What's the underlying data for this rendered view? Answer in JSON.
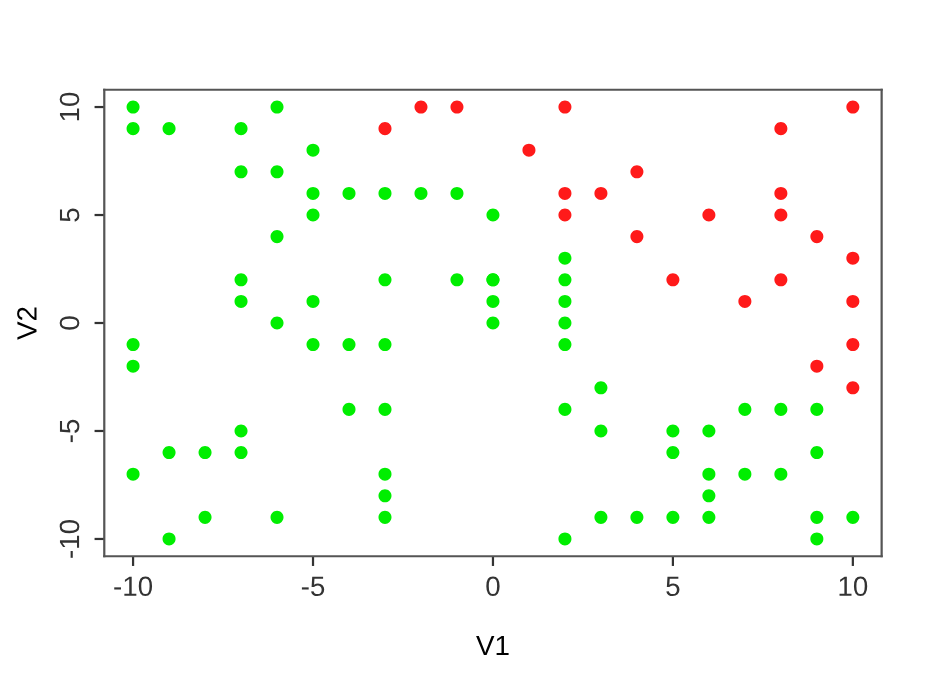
{
  "chart_data": {
    "type": "scatter",
    "xlabel": "V1",
    "ylabel": "V2",
    "xlim": [
      -10.8,
      10.8
    ],
    "ylim": [
      -10.8,
      10.8
    ],
    "xticks": [
      -10,
      -5,
      0,
      5,
      10
    ],
    "yticks": [
      -10,
      -5,
      0,
      5,
      10
    ],
    "grid": false,
    "legend": false,
    "marker": "circle",
    "series": [
      {
        "color": "#00ee00",
        "x": [
          -10,
          -6,
          -10,
          -9,
          -7,
          -5,
          -7,
          -6,
          -5,
          -4,
          -3,
          -2,
          -1,
          -5,
          0,
          -6,
          -7,
          -3,
          -1,
          0,
          -7,
          -5,
          0,
          -6,
          0,
          -10,
          -5,
          -4,
          -3,
          -10,
          -4,
          -3,
          -7,
          -9,
          -8,
          -7,
          -10,
          -3,
          -3,
          -8,
          -6,
          -3,
          -9,
          0,
          2,
          2,
          2,
          2,
          2,
          3,
          2,
          7,
          8,
          9,
          3,
          5,
          6,
          5,
          9,
          6,
          7,
          8,
          6,
          3,
          4,
          5,
          6,
          9,
          10,
          2,
          9
        ],
        "values": [
          10,
          10,
          9,
          9,
          9,
          8,
          7,
          7,
          6,
          6,
          6,
          6,
          6,
          5,
          5,
          4,
          2,
          2,
          2,
          2,
          1,
          1,
          1,
          0,
          0,
          -1,
          -1,
          -1,
          -1,
          -2,
          -4,
          -4,
          -5,
          -6,
          -6,
          -6,
          -7,
          -7,
          -8,
          -9,
          -9,
          -9,
          -10,
          2,
          3,
          2,
          1,
          0,
          -1,
          -3,
          -4,
          -4,
          -4,
          -4,
          -5,
          -5,
          -5,
          -6,
          -6,
          -7,
          -7,
          -7,
          -8,
          -9,
          -9,
          -9,
          -9,
          -9,
          -9,
          -10,
          -10
        ]
      },
      {
        "color": "#ff1a1a",
        "x": [
          -3,
          -2,
          -1,
          2,
          10,
          8,
          1,
          4,
          2,
          3,
          8,
          2,
          6,
          8,
          4,
          9,
          10,
          5,
          8,
          7,
          10,
          10,
          9,
          10
        ],
        "values": [
          9,
          10,
          10,
          10,
          10,
          9,
          8,
          7,
          6,
          6,
          6,
          5,
          5,
          5,
          4,
          4,
          3,
          2,
          2,
          1,
          1,
          -1,
          -2,
          -3
        ]
      }
    ]
  }
}
